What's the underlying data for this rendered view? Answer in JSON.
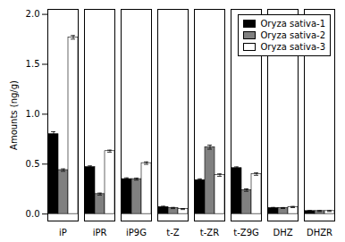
{
  "chart_data": {
    "type": "bar",
    "categories": [
      "iP",
      "iPR",
      "iP9G",
      "t-Z",
      "t-ZR",
      "t-Z9G",
      "DHZ",
      "DHZR"
    ],
    "series": [
      {
        "name": "Oryza sativa-1",
        "color": "#000000",
        "values": [
          0.8,
          0.47,
          0.35,
          0.07,
          0.34,
          0.46,
          0.06,
          0.03
        ],
        "errors": [
          0.025,
          0.012,
          0.012,
          0.008,
          0.012,
          0.012,
          0.006,
          0.005
        ]
      },
      {
        "name": "Oryza sativa-2",
        "color": "#808080",
        "values": [
          0.44,
          0.2,
          0.35,
          0.06,
          0.67,
          0.24,
          0.06,
          0.03
        ],
        "errors": [
          0.012,
          0.01,
          0.01,
          0.006,
          0.02,
          0.012,
          0.005,
          0.005
        ]
      },
      {
        "name": "Oryza sativa-3",
        "color": "#ffffff",
        "values": [
          1.77,
          0.63,
          0.51,
          0.05,
          0.39,
          0.4,
          0.07,
          0.03
        ],
        "errors": [
          0.018,
          0.01,
          0.012,
          0.005,
          0.012,
          0.012,
          0.006,
          0.005
        ]
      }
    ],
    "ylabel": "Amounts (ng/g)",
    "ylim": [
      -0.07,
      2.05
    ],
    "yticks": [
      {
        "value": 0.0,
        "label": "0.0"
      },
      0.5,
      {
        "value": 1.0,
        "label": "1.0"
      },
      1.5,
      {
        "value": 2.0,
        "label": "2.0"
      }
    ],
    "legend": "upper right"
  }
}
